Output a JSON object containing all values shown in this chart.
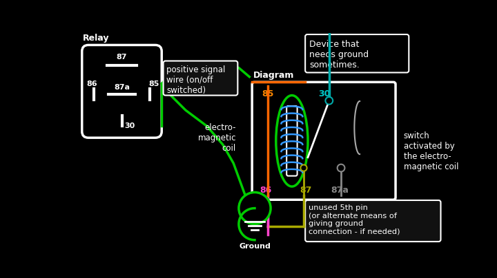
{
  "bg_color": "#000000",
  "relay_label": "Relay",
  "diagram_label": "Diagram",
  "pin_colors": {
    "85": "#ff8800",
    "30": "#00cccc",
    "86": "#ff44cc",
    "87": "#aaaa00",
    "87a": "#888888"
  },
  "wire_green": "#00cc00",
  "wire_orange": "#ff6600",
  "wire_cyan": "#00aaaa",
  "wire_pink": "#ff44cc",
  "wire_yellow": "#aaaa00",
  "wire_gray": "#888888",
  "coil_blue": "#3399ff",
  "white": "#ffffff",
  "off_label": "off",
  "ground_label": "Ground"
}
